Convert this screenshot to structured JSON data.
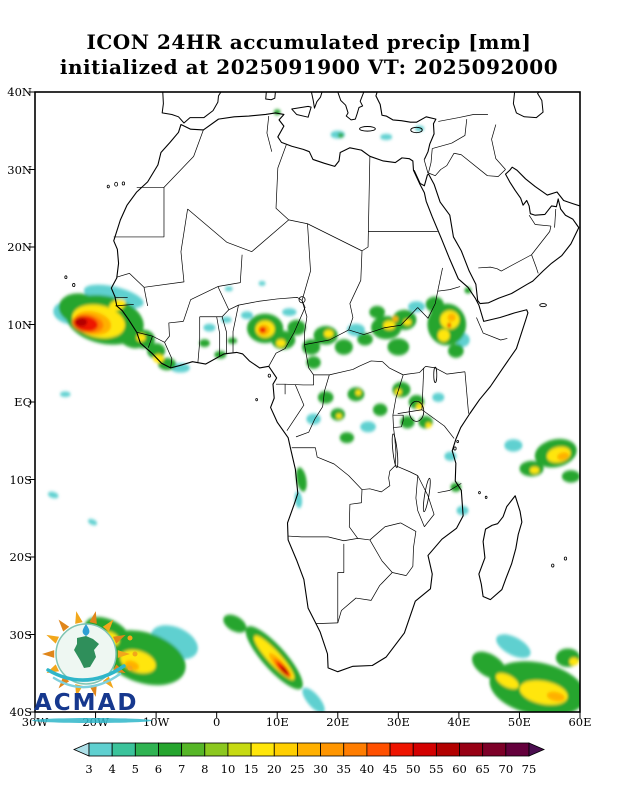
{
  "title": {
    "line1": "ICON 24HR accumulated precip [mm]",
    "line2": "initialized at 2025091900 VT: 2025092000"
  },
  "map": {
    "lon_min": -30,
    "lon_max": 60,
    "lat_min": -40,
    "lat_max": 40,
    "x_tick_labels": [
      "30W",
      "20W",
      "10W",
      "0",
      "10E",
      "20E",
      "30E",
      "40E",
      "50E",
      "60E"
    ],
    "x_tick_lons": [
      -30,
      -20,
      -10,
      0,
      10,
      20,
      30,
      40,
      50,
      60
    ],
    "y_tick_labels": [
      "40N",
      "30N",
      "20N",
      "10N",
      "EQ",
      "10S",
      "20S",
      "30S",
      "40S"
    ],
    "y_tick_lats": [
      40,
      30,
      20,
      10,
      0,
      -10,
      -20,
      -30,
      -40
    ]
  },
  "colorbar": {
    "labels": [
      "3",
      "4",
      "5",
      "6",
      "7",
      "8",
      "10",
      "15",
      "20",
      "25",
      "30",
      "35",
      "40",
      "45",
      "50",
      "55",
      "60",
      "65",
      "70",
      "75"
    ],
    "colors": [
      "#aee0e8",
      "#5fd0d0",
      "#3bc39b",
      "#2fb352",
      "#26a52e",
      "#56b627",
      "#8cc81f",
      "#c6da12",
      "#ffe60a",
      "#ffcf00",
      "#ffb000",
      "#ff9600",
      "#ff7d00",
      "#ff5000",
      "#ee1400",
      "#d30000",
      "#b20000",
      "#970014",
      "#7d0028",
      "#64003c",
      "#4b0e50"
    ]
  },
  "logo": {
    "text": "ACMAD"
  },
  "precip": {
    "palette": {
      "c": "#5fd0d0",
      "g": "#26a52e",
      "y": "#ffe60a",
      "o": "#ffb000",
      "do": "#ff7d00",
      "r": "#ee1400",
      "dr": "#b20000"
    },
    "blobs": [
      [
        -17,
        13.6,
        5,
        1.3,
        -10,
        "c"
      ],
      [
        -24,
        11.5,
        3,
        1.5,
        -5,
        "c"
      ],
      [
        -6,
        4.4,
        1.6,
        0.6,
        0,
        "c"
      ],
      [
        -1.2,
        9.6,
        1,
        0.5,
        0,
        "c"
      ],
      [
        1.6,
        10.6,
        0.9,
        0.4,
        0,
        "c"
      ],
      [
        5,
        11.2,
        1,
        0.5,
        0,
        "c"
      ],
      [
        12,
        11.6,
        1.2,
        0.5,
        0,
        "c"
      ],
      [
        23,
        9.3,
        1.5,
        0.8,
        0,
        "c"
      ],
      [
        33,
        12.3,
        1.4,
        0.7,
        0,
        "c"
      ],
      [
        40.6,
        8,
        1.2,
        0.9,
        0,
        "c"
      ],
      [
        36.6,
        0.6,
        1,
        0.6,
        0,
        "c"
      ],
      [
        16,
        -2.2,
        1.2,
        0.7,
        0,
        "c"
      ],
      [
        25,
        -3.2,
        1.3,
        0.7,
        0,
        "c"
      ],
      [
        38.6,
        -7,
        1,
        0.6,
        0,
        "c"
      ],
      [
        40.6,
        -14,
        1,
        0.6,
        0,
        "c"
      ],
      [
        49,
        -5.6,
        1.5,
        0.8,
        0,
        "c"
      ],
      [
        -25,
        1,
        0.9,
        0.35,
        0,
        "c"
      ],
      [
        -27,
        -12,
        0.9,
        0.4,
        -10,
        "c"
      ],
      [
        -20.5,
        -15.5,
        0.8,
        0.35,
        -15,
        "c"
      ],
      [
        -7,
        -31,
        4,
        2,
        -15,
        "c"
      ],
      [
        16,
        -38.5,
        2.3,
        0.9,
        -40,
        "c"
      ],
      [
        49,
        -31.5,
        3,
        1.2,
        -20,
        "c"
      ],
      [
        20,
        34.5,
        1.2,
        0.5,
        0,
        "c"
      ],
      [
        28,
        34.2,
        1,
        0.4,
        0,
        "c"
      ],
      [
        33.5,
        35.3,
        0.8,
        0.35,
        0,
        "c"
      ],
      [
        13.5,
        -12.6,
        0.6,
        1.1,
        10,
        "c"
      ],
      [
        2,
        14.6,
        0.7,
        0.3,
        0,
        "c"
      ],
      [
        7.5,
        15.3,
        0.6,
        0.3,
        0,
        "c"
      ],
      [
        -18.5,
        10.6,
        6.5,
        3.1,
        -8,
        "g"
      ],
      [
        -22.5,
        12,
        3.6,
        2,
        -5,
        "g"
      ],
      [
        -14.3,
        8.6,
        2.6,
        1.5,
        -20,
        "g"
      ],
      [
        -12,
        8.1,
        1.8,
        1.2,
        0,
        "g"
      ],
      [
        -10,
        6.6,
        1.5,
        1,
        0,
        "g"
      ],
      [
        -8.2,
        4.9,
        1.5,
        0.8,
        0,
        "g"
      ],
      [
        -2,
        7.6,
        0.9,
        0.5,
        0,
        "g"
      ],
      [
        0.6,
        6.1,
        1,
        0.5,
        0,
        "g"
      ],
      [
        2.6,
        7.9,
        0.8,
        0.4,
        0,
        "g"
      ],
      [
        8,
        9.5,
        3,
        1.9,
        0,
        "g"
      ],
      [
        11,
        8,
        2,
        1.2,
        0,
        "g"
      ],
      [
        13.2,
        9.6,
        1.5,
        1,
        0,
        "g"
      ],
      [
        15.6,
        7.1,
        1.5,
        1,
        0,
        "g"
      ],
      [
        18,
        8.6,
        2,
        1.2,
        0,
        "g"
      ],
      [
        21,
        7.1,
        1.5,
        1,
        0,
        "g"
      ],
      [
        24.5,
        8.1,
        1.3,
        0.8,
        0,
        "g"
      ],
      [
        16,
        5.1,
        1.2,
        0.8,
        0,
        "g"
      ],
      [
        28,
        9.6,
        2.5,
        1.5,
        0,
        "g"
      ],
      [
        31,
        10.6,
        2,
        1.3,
        0,
        "g"
      ],
      [
        30,
        7.1,
        1.8,
        1.1,
        0,
        "g"
      ],
      [
        26.5,
        11.6,
        1.3,
        0.8,
        0,
        "g"
      ],
      [
        38,
        10,
        3.2,
        2.7,
        0,
        "g"
      ],
      [
        36,
        12.6,
        1.5,
        1,
        0,
        "g"
      ],
      [
        39.5,
        6.6,
        1.3,
        0.9,
        0,
        "g"
      ],
      [
        41.5,
        14.4,
        0.6,
        0.4,
        0,
        "g"
      ],
      [
        30.5,
        1.6,
        1.5,
        1,
        0,
        "g"
      ],
      [
        33,
        0,
        1.3,
        0.9,
        0,
        "g"
      ],
      [
        34.5,
        -2.6,
        1.2,
        0.8,
        0,
        "g"
      ],
      [
        31.5,
        -2.6,
        1.2,
        0.8,
        0,
        "g"
      ],
      [
        18,
        0.6,
        1.3,
        0.8,
        0,
        "g"
      ],
      [
        20,
        -1.6,
        1.2,
        0.8,
        0,
        "g"
      ],
      [
        23,
        1,
        1.4,
        0.9,
        0,
        "g"
      ],
      [
        27,
        -1,
        1.2,
        0.8,
        0,
        "g"
      ],
      [
        21.5,
        -4.6,
        1.2,
        0.7,
        0,
        "g"
      ],
      [
        39.5,
        -11,
        0.9,
        0.6,
        0,
        "g"
      ],
      [
        14,
        -10,
        0.8,
        1.6,
        15,
        "g"
      ],
      [
        56,
        -6.6,
        3.5,
        1.8,
        8,
        "g"
      ],
      [
        52,
        -8.6,
        2,
        1,
        0,
        "g"
      ],
      [
        58.5,
        -9.6,
        1.5,
        0.8,
        0,
        "g"
      ],
      [
        -12,
        -33,
        7,
        3.3,
        -12,
        "g"
      ],
      [
        -18,
        -30,
        4,
        2,
        -18,
        "g"
      ],
      [
        9.5,
        -33,
        6,
        1.7,
        -40,
        "g"
      ],
      [
        3,
        -28.6,
        2,
        1,
        -20,
        "g"
      ],
      [
        53,
        -37,
        8,
        3.4,
        -8,
        "g"
      ],
      [
        45,
        -34,
        3,
        1.5,
        -22,
        "g"
      ],
      [
        58,
        -33,
        2,
        1.2,
        0,
        "g"
      ],
      [
        20.5,
        34.4,
        0.5,
        0.3,
        0,
        "g"
      ],
      [
        10,
        37.4,
        0.6,
        0.35,
        0,
        "g"
      ],
      [
        -19.5,
        10.4,
        4.4,
        2.1,
        -8,
        "y"
      ],
      [
        -16.4,
        12.5,
        1.4,
        0.7,
        15,
        "y"
      ],
      [
        -12.5,
        8.3,
        0.8,
        0.5,
        0,
        "y"
      ],
      [
        -9.6,
        5.6,
        0.9,
        0.55,
        0,
        "y"
      ],
      [
        8,
        9.4,
        1.6,
        1.1,
        0,
        "y"
      ],
      [
        10.6,
        7.6,
        0.8,
        0.5,
        0,
        "y"
      ],
      [
        18.5,
        8.8,
        0.8,
        0.5,
        0,
        "y"
      ],
      [
        28.5,
        9.9,
        1,
        0.6,
        0,
        "y"
      ],
      [
        31.5,
        10.3,
        0.7,
        0.4,
        0,
        "y"
      ],
      [
        38.5,
        10.6,
        1.6,
        1.2,
        0,
        "y"
      ],
      [
        37.5,
        8.6,
        1,
        0.8,
        0,
        "y"
      ],
      [
        30,
        1.3,
        0.6,
        0.4,
        0,
        "y"
      ],
      [
        33.5,
        -0.6,
        0.6,
        0.4,
        0,
        "y"
      ],
      [
        35,
        -3,
        0.5,
        0.35,
        0,
        "y"
      ],
      [
        23.4,
        1.2,
        0.5,
        0.35,
        0,
        "y"
      ],
      [
        20.2,
        -1.8,
        0.5,
        0.3,
        0,
        "y"
      ],
      [
        56.5,
        -6.8,
        2,
        1,
        8,
        "y"
      ],
      [
        52.5,
        -8.8,
        0.8,
        0.45,
        0,
        "y"
      ],
      [
        -13,
        -33.5,
        3,
        1.4,
        -12,
        "y"
      ],
      [
        -17.5,
        -30.5,
        1.5,
        0.8,
        -18,
        "y"
      ],
      [
        9.5,
        -33,
        4.3,
        0.95,
        -40,
        "y"
      ],
      [
        54,
        -37.5,
        4,
        1.5,
        -8,
        "y"
      ],
      [
        48,
        -36,
        2,
        0.8,
        -20,
        "y"
      ],
      [
        59,
        -33.5,
        0.8,
        0.5,
        0,
        "y"
      ],
      [
        -20.5,
        10.2,
        3.1,
        1.5,
        -8,
        "o"
      ],
      [
        7.8,
        9.3,
        1,
        0.7,
        0,
        "o"
      ],
      [
        38.8,
        10.9,
        0.7,
        0.5,
        0,
        "o"
      ],
      [
        29.5,
        10.7,
        0.5,
        0.35,
        0,
        "o"
      ],
      [
        57.2,
        -7,
        1,
        0.5,
        8,
        "o"
      ],
      [
        -14,
        -34,
        1.2,
        0.6,
        -12,
        "o"
      ],
      [
        10.5,
        -34,
        2.4,
        0.6,
        -40,
        "o"
      ],
      [
        56,
        -38,
        1.5,
        0.6,
        -8,
        "o"
      ],
      [
        -21.3,
        10.1,
        2.6,
        1.2,
        -6,
        "do"
      ],
      [
        10.8,
        -34.3,
        1.8,
        0.5,
        -40,
        "do"
      ],
      [
        -21.6,
        10.1,
        2,
        1,
        -6,
        "r"
      ],
      [
        7.6,
        9.3,
        0.55,
        0.4,
        0,
        "r"
      ],
      [
        11,
        -34.5,
        1.4,
        0.4,
        -40,
        "r"
      ],
      [
        38.4,
        9.9,
        0.35,
        0.28,
        0,
        "r"
      ],
      [
        -22.4,
        10.3,
        1,
        0.55,
        0,
        "dr"
      ],
      [
        11.2,
        -34.6,
        0.7,
        0.26,
        -40,
        "dr"
      ]
    ]
  }
}
